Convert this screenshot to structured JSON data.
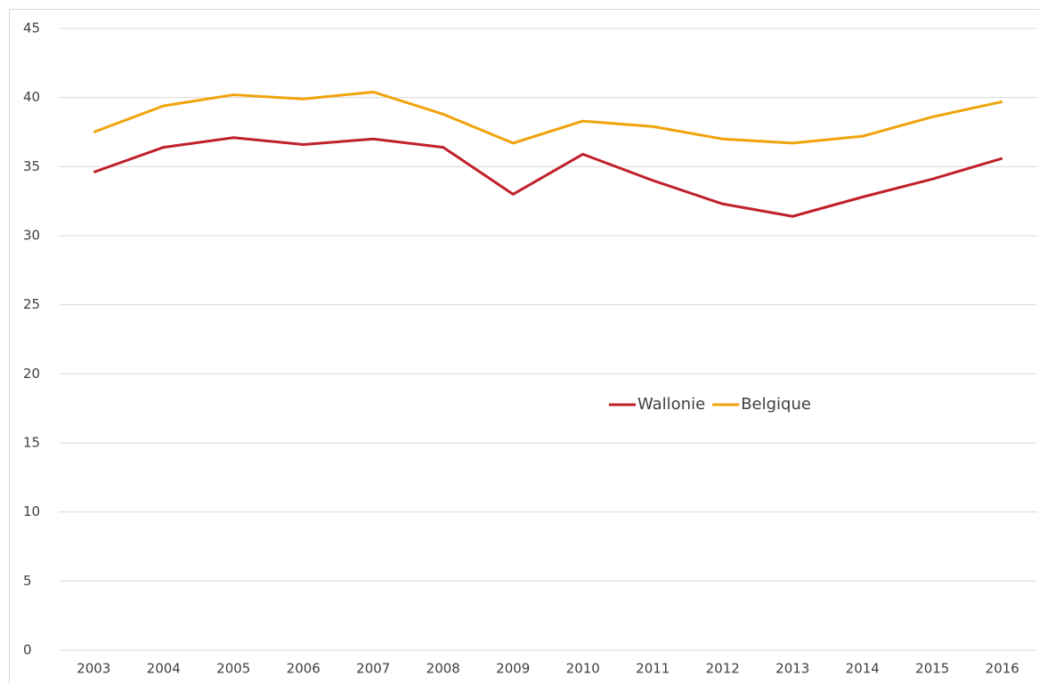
{
  "chart_data": {
    "type": "line",
    "categories": [
      "2003",
      "2004",
      "2005",
      "2006",
      "2007",
      "2008",
      "2009",
      "2010",
      "2011",
      "2012",
      "2013",
      "2014",
      "2015",
      "2016"
    ],
    "series": [
      {
        "name": "Wallonie",
        "color": "#c0202a",
        "values": [
          34.6,
          36.4,
          37.1,
          36.6,
          37.0,
          36.4,
          33.0,
          35.9,
          34.0,
          32.3,
          31.4,
          32.8,
          34.1,
          35.6
        ]
      },
      {
        "name": "Belgique",
        "color": "#f0a30a",
        "values": [
          37.5,
          39.4,
          40.2,
          39.9,
          40.4,
          38.8,
          36.7,
          38.3,
          37.9,
          37.0,
          36.7,
          37.2,
          38.6,
          39.7
        ]
      }
    ],
    "ylim": [
      0,
      45
    ],
    "yticks": [
      0,
      5,
      10,
      15,
      20,
      25,
      30,
      35,
      40,
      45
    ],
    "grid": true
  }
}
